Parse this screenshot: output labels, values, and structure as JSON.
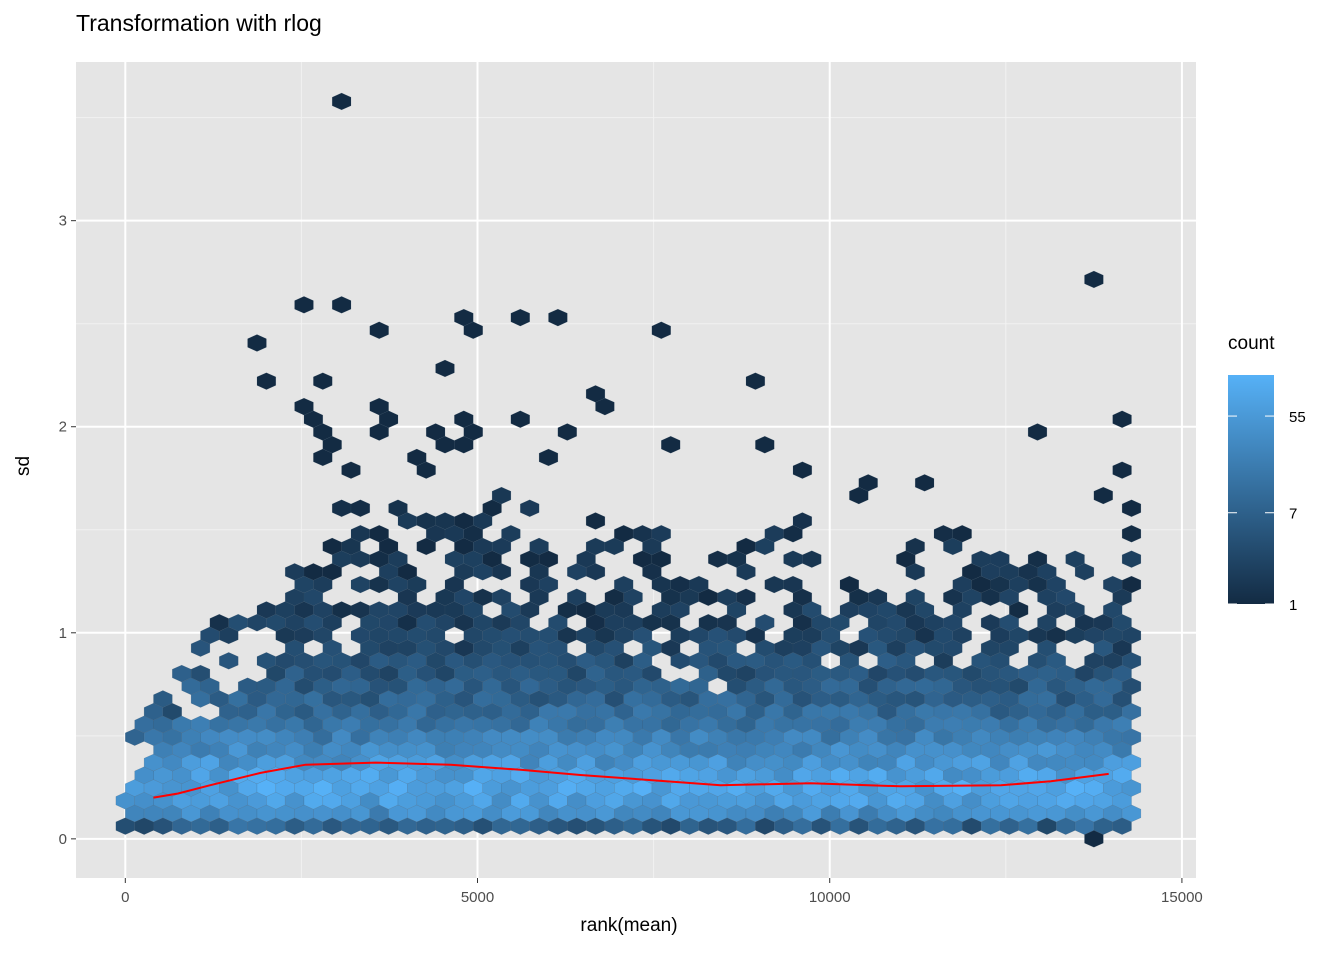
{
  "chart_data": {
    "type": "hexbin",
    "title": "Transformation with rlog",
    "xlabel": "rank(mean)",
    "ylabel": "sd",
    "xlim": [
      -700,
      15200
    ],
    "ylim": [
      -0.19,
      3.77
    ],
    "x_ticks": [
      0,
      5000,
      10000,
      15000
    ],
    "x_tick_labels": [
      "0",
      "5000",
      "10000",
      "15000"
    ],
    "y_ticks": [
      0,
      1,
      2,
      3
    ],
    "y_tick_labels": [
      "0",
      "1",
      "2",
      "3"
    ],
    "grid": true,
    "panel_background": "#E5E5E5",
    "hex_binwidth": {
      "x": 267,
      "y": 0.1234
    },
    "legend": {
      "title": "count",
      "position": "right",
      "scale": "log",
      "limits": [
        1,
        132
      ],
      "breaks": [
        55,
        7,
        1
      ],
      "break_labels": [
        "55",
        "7",
        "1"
      ],
      "low_color": "#132B43",
      "high_color": "#56B1F7"
    },
    "dense_body_top_sd": {
      "x": [
        0,
        300,
        600,
        1000,
        1500,
        2000,
        2500,
        3000,
        3500,
        4000,
        4500,
        5000,
        5500,
        6000,
        6500,
        7000,
        7500,
        8000,
        8500,
        9000,
        9500,
        10000,
        10500,
        11000,
        11500,
        12000,
        12500,
        13000,
        13500,
        14000,
        14300
      ],
      "sd": [
        0.4,
        0.7,
        0.8,
        1.05,
        1.05,
        1.2,
        1.45,
        1.65,
        1.65,
        1.65,
        1.7,
        1.6,
        1.7,
        1.55,
        1.55,
        1.6,
        1.6,
        1.3,
        1.4,
        1.45,
        1.6,
        1.35,
        1.35,
        1.55,
        1.6,
        1.45,
        1.45,
        1.45,
        1.4,
        1.45,
        1.6
      ]
    },
    "count_profile": {
      "sd": [
        0.0,
        0.07,
        0.15,
        0.25,
        0.35,
        0.45,
        0.55,
        0.65,
        0.8,
        1.0,
        1.3,
        1.8
      ],
      "count": [
        2,
        10,
        55,
        90,
        60,
        30,
        16,
        9,
        5,
        2.5,
        1.5,
        1
      ]
    },
    "outliers": [
      [
        3150,
        3.6
      ],
      [
        13750,
        2.73
      ],
      [
        2585,
        2.61
      ],
      [
        3150,
        2.61
      ],
      [
        3720,
        2.48
      ],
      [
        4730,
        2.54
      ],
      [
        4870,
        2.48
      ],
      [
        5580,
        2.54
      ],
      [
        6150,
        2.54
      ],
      [
        7725,
        2.48
      ],
      [
        1875,
        2.42
      ],
      [
        2000,
        2.23
      ],
      [
        2870,
        2.23
      ],
      [
        4430,
        2.3
      ],
      [
        8875,
        2.23
      ],
      [
        6730,
        2.17
      ],
      [
        6870,
        2.11
      ],
      [
        2585,
        2.11
      ],
      [
        2725,
        2.05
      ],
      [
        2870,
        1.99
      ],
      [
        3010,
        1.92
      ],
      [
        2870,
        1.86
      ],
      [
        3580,
        2.11
      ],
      [
        3720,
        2.05
      ],
      [
        3580,
        1.99
      ],
      [
        4300,
        1.99
      ],
      [
        4430,
        1.92
      ],
      [
        4730,
        2.05
      ],
      [
        4870,
        1.99
      ],
      [
        4730,
        1.92
      ],
      [
        5580,
        2.05
      ],
      [
        6290,
        1.99
      ],
      [
        6010,
        1.86
      ],
      [
        9020,
        1.92
      ],
      [
        7870,
        1.92
      ],
      [
        12880,
        1.99
      ],
      [
        14170,
        2.05
      ],
      [
        3290,
        1.8
      ],
      [
        4020,
        1.86
      ],
      [
        4160,
        1.8
      ],
      [
        9590,
        1.8
      ],
      [
        14170,
        1.8
      ],
      [
        10600,
        1.73
      ],
      [
        10460,
        1.67
      ],
      [
        11450,
        1.73
      ],
      [
        13890,
        1.67
      ],
      [
        14320,
        1.61
      ],
      [
        13750,
        0.0
      ]
    ],
    "trend_line": {
      "color": "#FF0000",
      "x": [
        400,
        750,
        1200,
        1920,
        2560,
        3550,
        4620,
        5610,
        6460,
        7460,
        8450,
        9730,
        11000,
        12430,
        13140,
        13960
      ],
      "sd": [
        0.2,
        0.22,
        0.26,
        0.32,
        0.36,
        0.37,
        0.36,
        0.335,
        0.31,
        0.285,
        0.26,
        0.27,
        0.255,
        0.26,
        0.28,
        0.315
      ]
    }
  }
}
